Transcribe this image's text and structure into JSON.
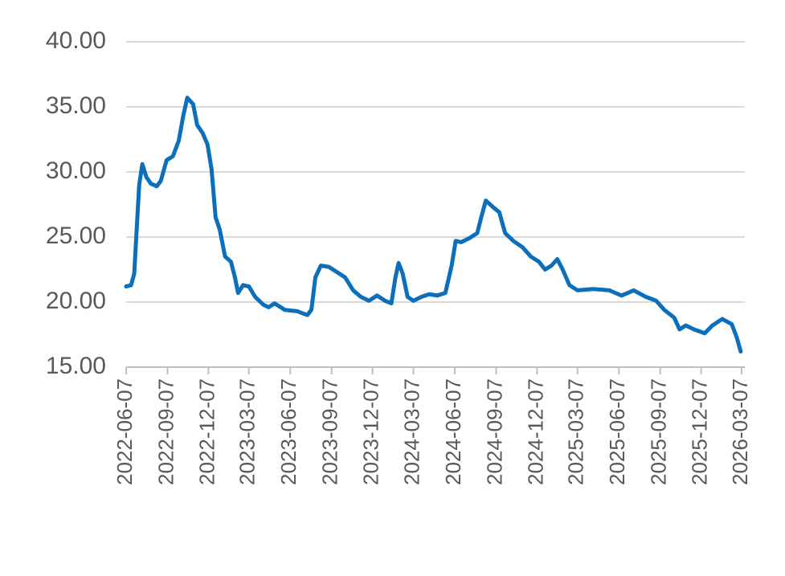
{
  "chart_data": {
    "type": "line",
    "x": [
      "2022-06-07",
      "2022-06-18",
      "2022-06-25",
      "2022-06-30",
      "2022-07-06",
      "2022-07-13",
      "2022-07-22",
      "2022-08-01",
      "2022-08-14",
      "2022-08-23",
      "2022-09-05",
      "2022-09-19",
      "2022-10-02",
      "2022-10-12",
      "2022-10-21",
      "2022-11-03",
      "2022-11-12",
      "2022-11-24",
      "2022-12-05",
      "2022-12-14",
      "2022-12-23",
      "2023-01-01",
      "2023-01-13",
      "2023-01-26",
      "2023-02-04",
      "2023-02-11",
      "2023-02-22",
      "2023-03-07",
      "2023-03-21",
      "2023-04-08",
      "2023-04-20",
      "2023-05-03",
      "2023-05-26",
      "2023-06-22",
      "2023-07-15",
      "2023-07-24",
      "2023-08-02",
      "2023-08-14",
      "2023-09-01",
      "2023-09-19",
      "2023-10-07",
      "2023-10-25",
      "2023-11-11",
      "2023-11-29",
      "2023-12-17",
      "2024-01-04",
      "2024-01-18",
      "2024-01-27",
      "2024-02-03",
      "2024-02-12",
      "2024-02-23",
      "2024-03-07",
      "2024-03-25",
      "2024-04-11",
      "2024-04-29",
      "2024-05-17",
      "2024-05-31",
      "2024-06-09",
      "2024-06-21",
      "2024-07-09",
      "2024-07-27",
      "2024-08-04",
      "2024-08-15",
      "2024-08-31",
      "2024-09-14",
      "2024-09-27",
      "2024-10-15",
      "2024-11-05",
      "2024-11-23",
      "2024-12-11",
      "2024-12-25",
      "2025-01-08",
      "2025-01-21",
      "2025-02-02",
      "2025-02-17",
      "2025-03-07",
      "2025-04-11",
      "2025-05-17",
      "2025-06-13",
      "2025-07-10",
      "2025-08-06",
      "2025-08-29",
      "2025-09-16",
      "2025-10-08",
      "2025-10-20",
      "2025-11-03",
      "2025-11-21",
      "2025-12-15",
      "2026-01-01",
      "2026-01-23",
      "2026-02-13",
      "2026-02-24",
      "2026-03-05"
    ],
    "series": [
      {
        "color": "#0b6fbb",
        "values": [
          21.2,
          21.3,
          22.2,
          25.3,
          29.0,
          30.6,
          29.6,
          29.1,
          28.9,
          29.3,
          30.9,
          31.2,
          32.4,
          34.3,
          35.7,
          35.2,
          33.6,
          33.0,
          32.1,
          30.2,
          26.5,
          25.6,
          23.5,
          23.1,
          21.9,
          20.7,
          21.3,
          21.2,
          20.4,
          19.8,
          19.6,
          19.9,
          19.4,
          19.3,
          19.0,
          19.4,
          21.9,
          22.8,
          22.7,
          22.3,
          21.9,
          20.9,
          20.4,
          20.1,
          20.5,
          20.1,
          19.9,
          21.9,
          23.0,
          22.2,
          20.4,
          20.1,
          20.4,
          20.6,
          20.5,
          20.7,
          22.8,
          24.7,
          24.6,
          24.9,
          25.3,
          26.4,
          27.8,
          27.3,
          26.9,
          25.3,
          24.7,
          24.2,
          23.5,
          23.1,
          22.5,
          22.8,
          23.3,
          22.5,
          21.3,
          20.9,
          21.0,
          20.9,
          20.5,
          20.9,
          20.4,
          20.1,
          19.4,
          18.8,
          17.9,
          18.2,
          17.9,
          17.6,
          18.2,
          18.7,
          18.3,
          17.3,
          16.2
        ]
      }
    ],
    "xlim": [
      "2022-06-07",
      "2026-03-07"
    ],
    "xticks": [
      "2022-06-07",
      "2022-09-07",
      "2022-12-07",
      "2023-03-07",
      "2023-06-07",
      "2023-09-07",
      "2023-12-07",
      "2024-03-07",
      "2024-06-07",
      "2024-09-07",
      "2024-12-07",
      "2025-03-07",
      "2025-06-07",
      "2025-09-07",
      "2025-12-07",
      "2026-03-07"
    ],
    "ylim": [
      15,
      40
    ],
    "yticks": [
      {
        "value": 15,
        "label": "15.00"
      },
      {
        "value": 20,
        "label": "20.00"
      },
      {
        "value": 25,
        "label": "25.00"
      },
      {
        "value": 30,
        "label": "30.00"
      },
      {
        "value": 35,
        "label": "35.00"
      },
      {
        "value": 40,
        "label": "40.00"
      }
    ],
    "grid": true
  }
}
